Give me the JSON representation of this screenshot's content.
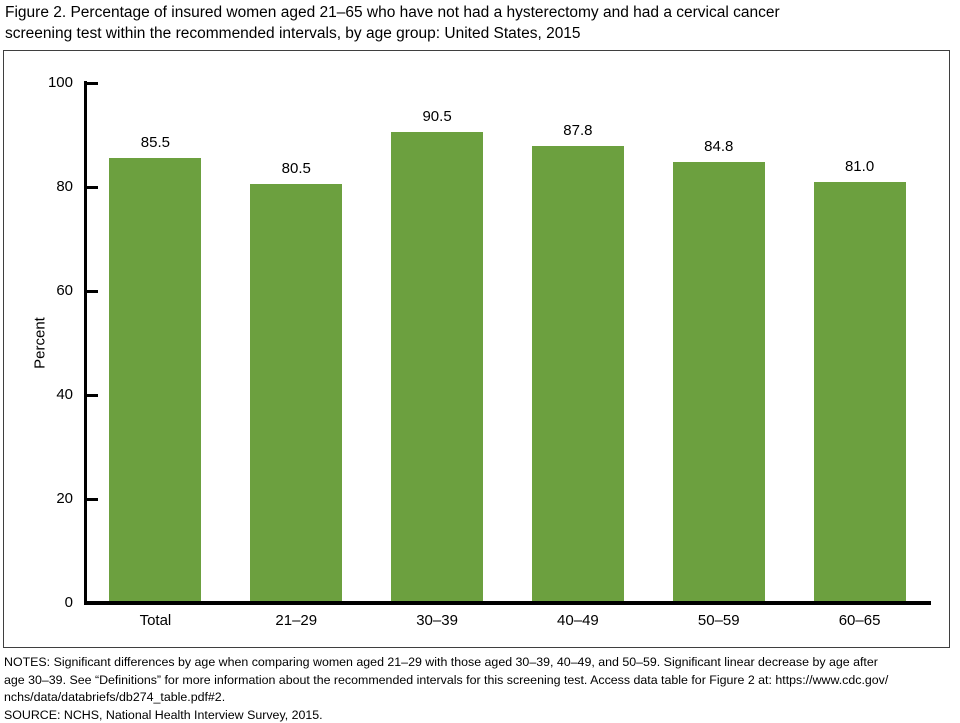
{
  "figure": {
    "title_lines": [
      "Figure 2. Percentage of insured women aged 21–65 who have not had a hysterectomy and had a cervical cancer",
      "screening test within the recommended intervals, by age group: United States, 2015"
    ]
  },
  "chart_data": {
    "type": "bar",
    "title": "Figure 2. Percentage of insured women aged 21–65 who have not had a hysterectomy and had a cervical cancer screening test within the recommended intervals, by age group: United States, 2015",
    "categories": [
      "Total",
      "21–29",
      "30–39",
      "40–49",
      "50–59",
      "60–65"
    ],
    "values": [
      85.5,
      80.5,
      90.5,
      87.8,
      84.8,
      81
    ],
    "value_labels": [
      "85.5",
      "80.5",
      "90.5",
      "87.8",
      "84.8",
      "81.0"
    ],
    "xlabel": "",
    "ylabel": "Percent",
    "ylim": [
      0,
      100
    ],
    "yticks": [
      0,
      20,
      40,
      60,
      80,
      100
    ],
    "bar_color": "#6CA03F",
    "grid": "off",
    "legend": "none"
  },
  "notes": {
    "lines": [
      "NOTES: Significant differences by age when comparing women aged 21–29 with those aged 30–39, 40–49, and 50–59. Significant linear decrease by age after",
      "age 30–39. See “Definitions” for more information about the recommended intervals for this screening test. Access data table for Figure 2 at: https://www.cdc.gov/",
      "nchs/data/databriefs/db274_table.pdf#2."
    ],
    "source": "SOURCE: NCHS, National Health Interview Survey, 2015."
  }
}
